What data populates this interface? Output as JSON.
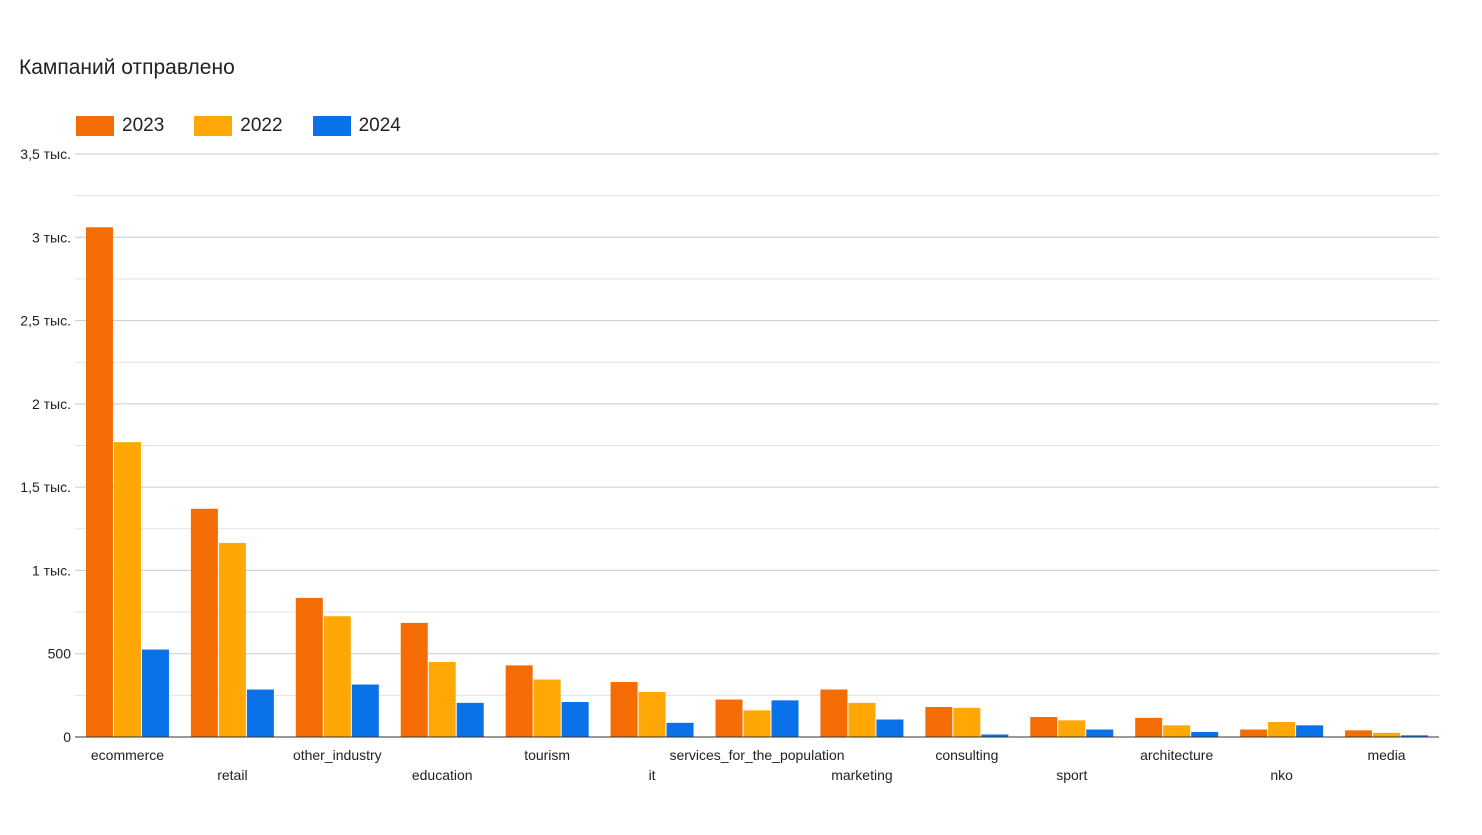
{
  "chart_data": {
    "type": "bar",
    "title": "Кампаний отправлено",
    "xlabel": "",
    "ylabel": "",
    "ylim": [
      0,
      3500
    ],
    "y_ticks": [
      {
        "value": 0,
        "label": "0"
      },
      {
        "value": 500,
        "label": "500"
      },
      {
        "value": 1000,
        "label": "1 тыс."
      },
      {
        "value": 1500,
        "label": "1,5 тыс."
      },
      {
        "value": 2000,
        "label": "2 тыс."
      },
      {
        "value": 2500,
        "label": "2,5 тыс."
      },
      {
        "value": 3000,
        "label": "3 тыс."
      },
      {
        "value": 3500,
        "label": "3,5 тыс."
      }
    ],
    "grid": true,
    "legend_position": "top-left",
    "categories": [
      "ecommerce",
      "retail",
      "other_industry",
      "education",
      "tourism",
      "it",
      "services_for_the_population",
      "marketing",
      "consulting",
      "sport",
      "architecture",
      "nko",
      "media"
    ],
    "series": [
      {
        "name": "2023",
        "color": "#f46d04",
        "values": [
          3060,
          1370,
          835,
          685,
          430,
          330,
          225,
          285,
          180,
          120,
          115,
          45,
          40
        ]
      },
      {
        "name": "2022",
        "color": "#ffa704",
        "values": [
          1770,
          1165,
          725,
          450,
          345,
          270,
          160,
          205,
          175,
          100,
          70,
          90,
          25
        ]
      },
      {
        "name": "2024",
        "color": "#0a72e8",
        "values": [
          525,
          285,
          315,
          205,
          210,
          85,
          220,
          105,
          15,
          45,
          30,
          70,
          10
        ]
      }
    ]
  }
}
